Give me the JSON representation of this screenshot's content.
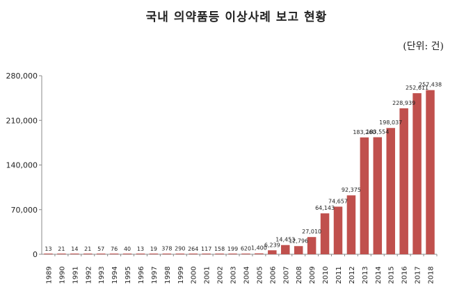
{
  "chart_data": {
    "type": "bar",
    "title": "국내 의약품등 이상사례 보고 현황",
    "unit_label": "(단위: 건)",
    "ylim": [
      0,
      280000
    ],
    "yticks": [
      0,
      70000,
      140000,
      210000,
      280000
    ],
    "ytick_labels": [
      "0",
      "70,000",
      "140,000",
      "210,000",
      "280,000"
    ],
    "grid": false,
    "bar_color": "#c0504d",
    "categories": [
      "1989",
      "1990",
      "1991",
      "1992",
      "1993",
      "1994",
      "1995",
      "1996",
      "1997",
      "1998",
      "1999",
      "2000",
      "2001",
      "2002",
      "2003",
      "2004",
      "2005",
      "2006",
      "2007",
      "2008",
      "2009",
      "2010",
      "2011",
      "2012",
      "2013",
      "2014",
      "2015",
      "2016",
      "2017",
      "2018"
    ],
    "values": [
      13,
      21,
      14,
      21,
      57,
      76,
      40,
      13,
      19,
      378,
      290,
      264,
      117,
      158,
      199,
      620,
      1400,
      6239,
      14453,
      12796,
      27010,
      64143,
      74657,
      92375,
      183260,
      183554,
      198037,
      228939,
      252611,
      257438
    ],
    "data_labels": [
      "13",
      "21",
      "14",
      "21",
      "57",
      "76",
      "40",
      "13",
      "19",
      "378",
      "290",
      "264",
      "117",
      "158",
      "199",
      "620",
      "1,400",
      "6,239",
      "14,453",
      "12,796",
      "27,010",
      "64,143",
      "74,657",
      "92,375",
      "183,260",
      "183,554",
      "198,037",
      "228,939",
      "252,611",
      "257,438"
    ]
  }
}
